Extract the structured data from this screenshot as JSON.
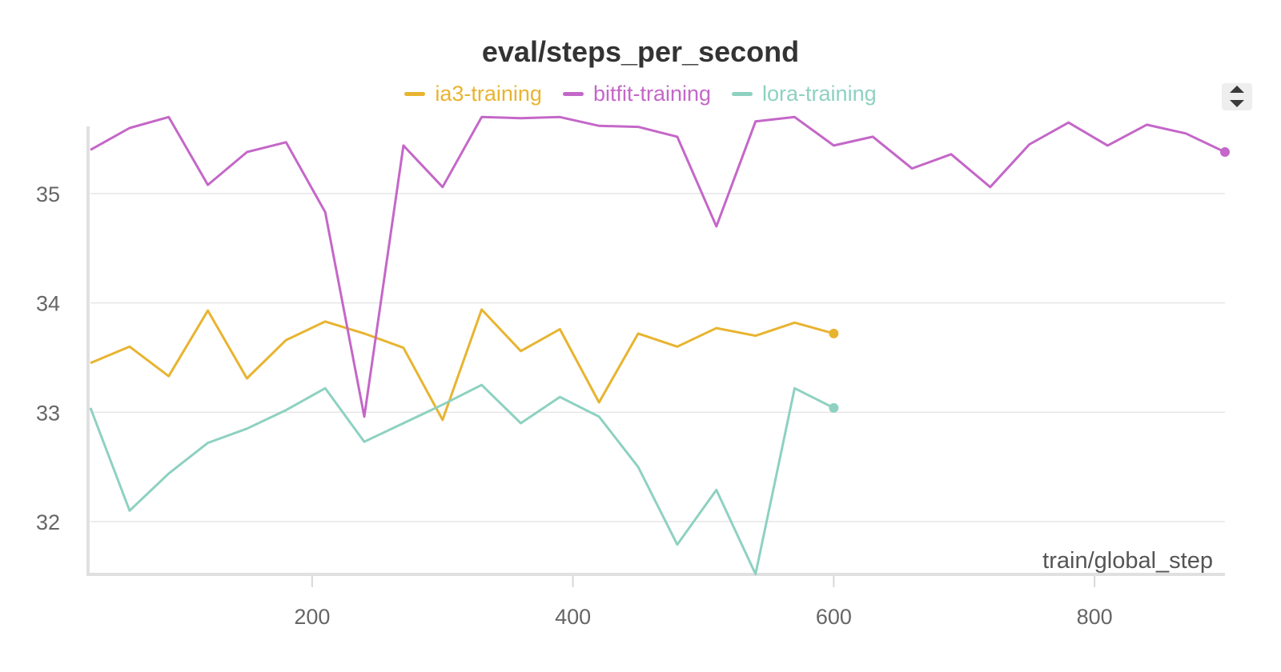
{
  "chart_data": {
    "type": "line",
    "title": "eval/steps_per_second",
    "xlabel": "train/global_step",
    "ylabel": "",
    "xlim": [
      30,
      900
    ],
    "ylim": [
      31.5,
      35.7
    ],
    "x_ticks": [
      200,
      400,
      600,
      800
    ],
    "y_ticks": [
      32,
      33,
      34,
      35
    ],
    "grid": true,
    "legend_position": "top-center",
    "series": [
      {
        "name": "ia3-training",
        "color": "#e8b430",
        "x": [
          30,
          60,
          90,
          120,
          150,
          180,
          210,
          240,
          270,
          300,
          330,
          360,
          390,
          420,
          450,
          480,
          510,
          540,
          570,
          600
        ],
        "y": [
          33.45,
          33.6,
          33.33,
          33.93,
          33.31,
          33.66,
          33.83,
          33.72,
          33.59,
          32.93,
          33.94,
          33.56,
          33.76,
          33.09,
          33.72,
          33.6,
          33.77,
          33.7,
          33.82,
          33.72
        ]
      },
      {
        "name": "bitfit-training",
        "color": "#c467c8",
        "x": [
          30,
          60,
          90,
          120,
          150,
          180,
          210,
          240,
          270,
          300,
          330,
          360,
          390,
          420,
          450,
          480,
          510,
          540,
          570,
          600,
          630,
          660,
          690,
          720,
          750,
          780,
          810,
          840,
          870,
          900
        ],
        "y": [
          35.4,
          35.6,
          35.7,
          35.08,
          35.38,
          35.47,
          34.83,
          32.96,
          35.44,
          35.06,
          35.7,
          35.69,
          35.7,
          35.62,
          35.61,
          35.52,
          34.7,
          35.66,
          35.7,
          35.44,
          35.52,
          35.23,
          35.36,
          35.06,
          35.45,
          35.65,
          35.44,
          35.63,
          35.55,
          35.38
        ]
      },
      {
        "name": "lora-training",
        "color": "#8ed1c1",
        "x": [
          30,
          60,
          90,
          120,
          150,
          180,
          210,
          240,
          270,
          300,
          330,
          360,
          390,
          420,
          450,
          480,
          510,
          540,
          570,
          600
        ],
        "y": [
          33.04,
          32.1,
          32.44,
          32.72,
          32.85,
          33.02,
          33.22,
          32.73,
          32.9,
          33.07,
          33.25,
          32.9,
          33.14,
          32.96,
          32.5,
          31.79,
          32.29,
          31.52,
          33.22,
          33.04
        ]
      }
    ]
  },
  "legend_title": "",
  "scroll_control": {
    "up_icon": "triangle-up-icon",
    "down_icon": "triangle-down-icon"
  }
}
